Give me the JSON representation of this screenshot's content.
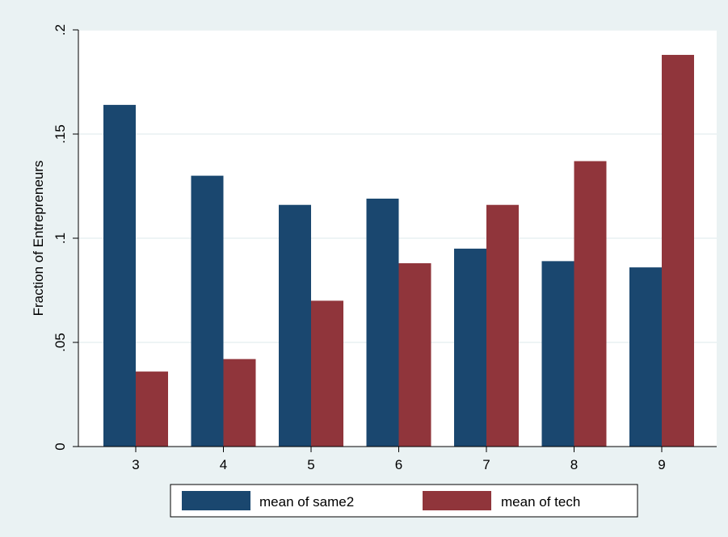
{
  "chart_data": {
    "type": "bar",
    "title": "",
    "xlabel": "",
    "ylabel": "Fraction of Entrepreneurs",
    "categories": [
      "3",
      "4",
      "5",
      "6",
      "7",
      "8",
      "9"
    ],
    "series": [
      {
        "name": "mean of same2",
        "values": [
          0.164,
          0.13,
          0.116,
          0.119,
          0.095,
          0.089,
          0.086
        ]
      },
      {
        "name": "mean of tech",
        "values": [
          0.036,
          0.042,
          0.07,
          0.088,
          0.116,
          0.137,
          0.188
        ]
      }
    ],
    "ylim": [
      0,
      0.2
    ],
    "yticks": [
      {
        "value": 0,
        "label": "0"
      },
      {
        "value": 0.05,
        "label": ".05"
      },
      {
        "value": 0.1,
        "label": ".1"
      },
      {
        "value": 0.15,
        "label": ".15"
      },
      {
        "value": 0.2,
        "label": ".2"
      }
    ],
    "grid": true,
    "legend_position": "bottom",
    "colors": {
      "page_background": "#eaf2f3",
      "plot_background": "#ffffff",
      "gridline": "#e9f1f2",
      "series": [
        "#1a476f",
        "#90353b"
      ]
    }
  }
}
